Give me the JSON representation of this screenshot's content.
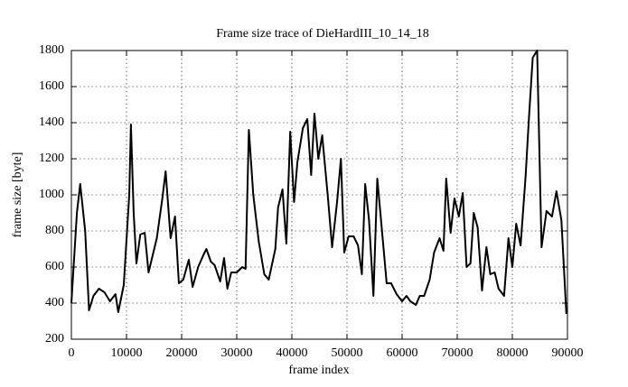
{
  "chart_data": {
    "type": "line",
    "title": "Frame size trace of DieHardIII_10_14_18",
    "x_label": "frame index",
    "y_label": "frame size [byte]",
    "color": "#000000",
    "grid": true,
    "xlim": [
      0,
      90000
    ],
    "ylim": [
      200,
      1800
    ],
    "xticks": [
      0,
      10000,
      20000,
      30000,
      40000,
      50000,
      60000,
      70000,
      80000,
      90000
    ],
    "yticks": [
      200,
      400,
      600,
      800,
      1000,
      1200,
      1400,
      1600,
      1800
    ],
    "x": [
      0,
      1000,
      1600,
      2500,
      3200,
      4000,
      5000,
      6000,
      7000,
      8000,
      8500,
      9500,
      10500,
      10800,
      11300,
      11800,
      12500,
      13300,
      14000,
      15500,
      16500,
      17100,
      18000,
      18800,
      19500,
      20300,
      21300,
      22000,
      23000,
      24000,
      24500,
      25300,
      26000,
      27000,
      27700,
      28300,
      29000,
      30000,
      31000,
      31600,
      32200,
      33000,
      34000,
      35000,
      35800,
      37000,
      37500,
      38300,
      39000,
      39700,
      40400,
      41000,
      42000,
      42800,
      43500,
      44100,
      44800,
      45500,
      46500,
      47300,
      48200,
      48900,
      49500,
      50300,
      51200,
      52000,
      52700,
      53300,
      54000,
      54800,
      55500,
      56500,
      57200,
      58000,
      59000,
      60000,
      60800,
      61500,
      62500,
      63200,
      64000,
      65000,
      65800,
      66800,
      67500,
      68000,
      68800,
      69500,
      70300,
      71000,
      71700,
      72400,
      73000,
      73700,
      74500,
      75300,
      76000,
      76800,
      77500,
      78500,
      79300,
      80000,
      80700,
      81500,
      82400,
      83000,
      83700,
      84500,
      85300,
      86200,
      87200,
      88000,
      88900,
      89800
    ],
    "values": [
      400,
      900,
      1060,
      800,
      360,
      440,
      480,
      460,
      410,
      450,
      350,
      500,
      1000,
      1390,
      900,
      620,
      780,
      790,
      570,
      760,
      980,
      1130,
      760,
      880,
      510,
      530,
      640,
      490,
      600,
      670,
      700,
      630,
      610,
      520,
      650,
      480,
      570,
      570,
      600,
      590,
      1360,
      1000,
      740,
      560,
      530,
      700,
      930,
      1030,
      730,
      1350,
      960,
      1180,
      1370,
      1420,
      1110,
      1450,
      1200,
      1330,
      1000,
      710,
      960,
      1200,
      680,
      770,
      770,
      720,
      560,
      1060,
      860,
      440,
      1090,
      750,
      510,
      510,
      450,
      410,
      440,
      410,
      390,
      440,
      440,
      530,
      680,
      760,
      690,
      1090,
      790,
      980,
      880,
      1010,
      600,
      620,
      900,
      820,
      470,
      710,
      560,
      570,
      480,
      440,
      760,
      600,
      840,
      720,
      1100,
      1420,
      1760,
      1800,
      710,
      910,
      880,
      1020,
      860,
      340
    ]
  }
}
